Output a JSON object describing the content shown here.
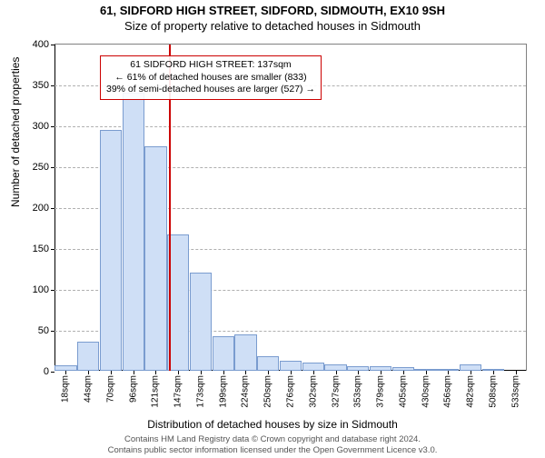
{
  "title": {
    "line1": "61, SIDFORD HIGH STREET, SIDFORD, SIDMOUTH, EX10 9SH",
    "line2": "Size of property relative to detached houses in Sidmouth"
  },
  "chart": {
    "type": "histogram",
    "ylim_max": 400,
    "ytick_step": 50,
    "bar_fill": "#cfdff6",
    "bar_stroke": "#7a9ccf",
    "grid_color": "#b0b0b0",
    "axis_color": "#000000",
    "marker_color": "#cc0000",
    "marker_value": 137,
    "categories": [
      "18sqm",
      "44sqm",
      "70sqm",
      "96sqm",
      "121sqm",
      "147sqm",
      "173sqm",
      "199sqm",
      "224sqm",
      "250sqm",
      "276sqm",
      "302sqm",
      "327sqm",
      "353sqm",
      "379sqm",
      "405sqm",
      "430sqm",
      "456sqm",
      "482sqm",
      "508sqm",
      "533sqm"
    ],
    "values": [
      7,
      36,
      295,
      340,
      275,
      167,
      120,
      42,
      44,
      18,
      12,
      10,
      8,
      6,
      6,
      4,
      2,
      2,
      8,
      2,
      0
    ]
  },
  "annotation": {
    "line1": "61 SIDFORD HIGH STREET: 137sqm",
    "line2": "← 61% of detached houses are smaller (833)",
    "line3": "39% of semi-detached houses are larger (527) →"
  },
  "axes": {
    "ylabel": "Number of detached properties",
    "xlabel": "Distribution of detached houses by size in Sidmouth"
  },
  "footer": {
    "line1": "Contains HM Land Registry data © Crown copyright and database right 2024.",
    "line2": "Contains public sector information licensed under the Open Government Licence v3.0."
  }
}
